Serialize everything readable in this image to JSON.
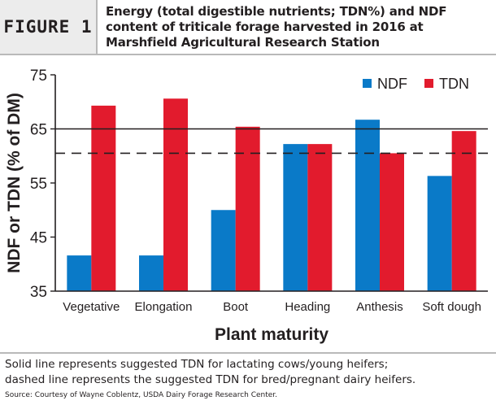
{
  "figure_label": "FIGURE 1",
  "figure_title": "Energy (total digestible nutrients; TDN%) and NDF content of triticale forage harvested in 2016 at Marshfield Agricultural Research Station",
  "footer": {
    "note_line1": "Solid line represents suggested TDN for lactating cows/young heifers;",
    "note_line2": "dashed line represents the suggested TDN for bred/pregnant dairy heifers.",
    "source": "Source: Courtesy of Wayne Coblentz, USDA Dairy Forage Research Center."
  },
  "colors": {
    "NDF": "#0a7ac8",
    "TDN": "#e21b2d",
    "line": "#231f20"
  },
  "chart_data": {
    "type": "bar",
    "title": "",
    "xlabel": "Plant maturity",
    "ylabel": "NDF or TDN (% of DM)",
    "ylim": [
      35,
      75
    ],
    "yticks": [
      35,
      45,
      55,
      65,
      75
    ],
    "categories": [
      "Vegetative",
      "Elongation",
      "Boot",
      "Heading",
      "Anthesis",
      "Soft dough"
    ],
    "series": [
      {
        "name": "NDF",
        "values": [
          41.6,
          41.6,
          50,
          62.2,
          66.7,
          56.3
        ]
      },
      {
        "name": "TDN",
        "values": [
          69.3,
          70.6,
          65.4,
          62.2,
          60.5,
          64.6
        ]
      }
    ],
    "reference_lines": [
      {
        "value": 65,
        "style": "solid"
      },
      {
        "value": 60.5,
        "style": "dashed"
      }
    ],
    "legend_position": "top-right",
    "grid": false
  }
}
